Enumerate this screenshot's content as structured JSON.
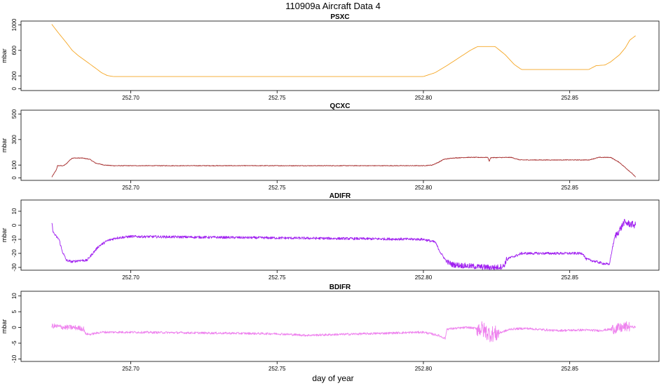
{
  "figure": {
    "title": "110909a   Aircraft Data 4",
    "xlabel": "day of year"
  },
  "chart_data": [
    {
      "type": "line",
      "title": "PSXC",
      "ylabel": "mbar",
      "xlim": [
        252.6625,
        252.8805
      ],
      "ylim": [
        -30,
        1060
      ],
      "xticks": [
        252.7,
        252.75,
        252.8,
        252.85
      ],
      "xtick_labels": [
        "252.70",
        "252.75",
        "252.80",
        "252.85"
      ],
      "yticks": [
        0,
        200,
        600,
        1000
      ],
      "ytick_labels": [
        "0",
        "200",
        "600",
        "1000"
      ],
      "series": [
        {
          "color": "#f5a623",
          "x": [
            252.673,
            252.675,
            252.678,
            252.68,
            252.682,
            252.685,
            252.688,
            252.69,
            252.692,
            252.694,
            252.7,
            252.75,
            252.8,
            252.804,
            252.808,
            252.812,
            252.816,
            252.8185,
            252.8245,
            252.828,
            252.831,
            252.8335,
            252.85,
            252.8565,
            252.859,
            252.862,
            252.864,
            252.867,
            252.869,
            252.8705,
            252.8725
          ],
          "y": [
            1010,
            890,
            720,
            600,
            520,
            420,
            320,
            250,
            205,
            190,
            190,
            190,
            190,
            250,
            360,
            480,
            600,
            660,
            660,
            530,
            380,
            300,
            300,
            300,
            360,
            370,
            420,
            530,
            640,
            760,
            830
          ]
        }
      ]
    },
    {
      "type": "line",
      "title": "QCXC",
      "ylabel": "mbar",
      "xlim": [
        252.6625,
        252.8805
      ],
      "ylim": [
        -20,
        530
      ],
      "xticks": [
        252.7,
        252.75,
        252.8,
        252.85
      ],
      "xtick_labels": [
        "252.70",
        "252.75",
        "252.80",
        "252.85"
      ],
      "yticks": [
        0,
        100,
        300,
        500
      ],
      "ytick_labels": [
        "0",
        "100",
        "300",
        "500"
      ],
      "series": [
        {
          "color": "#a52a2a",
          "x": [
            252.673,
            252.6745,
            252.675,
            252.677,
            252.678,
            252.679,
            252.68,
            252.6835,
            252.686,
            252.688,
            252.691,
            252.694,
            252.7,
            252.75,
            252.8,
            252.803,
            252.805,
            252.807,
            252.81,
            252.815,
            252.822,
            252.8225,
            252.823,
            252.83,
            252.833,
            252.845,
            252.8565,
            252.86,
            252.864,
            252.867,
            252.869,
            252.8715,
            252.8725
          ],
          "y": [
            5,
            60,
            95,
            95,
            110,
            135,
            155,
            155,
            145,
            115,
            100,
            95,
            95,
            95,
            95,
            100,
            120,
            145,
            155,
            160,
            160,
            130,
            158,
            160,
            140,
            140,
            140,
            160,
            160,
            120,
            80,
            30,
            5
          ]
        }
      ]
    },
    {
      "type": "line",
      "title": "ADIFR",
      "ylabel": "mbar",
      "xlim": [
        252.6625,
        252.8805
      ],
      "ylim": [
        -32,
        18
      ],
      "xticks": [
        252.7,
        252.75,
        252.8,
        252.85
      ],
      "xtick_labels": [
        "252.70",
        "252.75",
        "252.80",
        "252.85"
      ],
      "yticks": [
        -30,
        -20,
        -10,
        0,
        10
      ],
      "ytick_labels": [
        "-30",
        "-20",
        "-10",
        "0",
        "10"
      ],
      "series": [
        {
          "color": "#a020f0",
          "x": [
            252.673,
            252.6735,
            252.6745,
            252.6755,
            252.6765,
            252.678,
            252.68,
            252.6825,
            252.685,
            252.687,
            252.689,
            252.692,
            252.695,
            252.7,
            252.75,
            252.8,
            252.804,
            252.806,
            252.808,
            252.81,
            252.815,
            252.8225,
            252.825,
            252.8275,
            252.8285,
            252.8325,
            252.8335,
            252.845,
            252.8545,
            252.8555,
            252.861,
            252.8635,
            252.865,
            252.8655,
            252.8675,
            252.8685,
            252.8725
          ],
          "y": [
            2,
            -5,
            -8,
            -10,
            -18,
            -25,
            -26,
            -25,
            -25,
            -20,
            -15,
            -11,
            -9,
            -8,
            -9,
            -10,
            -12,
            -20,
            -26,
            -28,
            -29,
            -30,
            -30,
            -29,
            -24,
            -21,
            -20,
            -20,
            -20,
            -24,
            -27,
            -28,
            -12,
            -8,
            -2,
            2,
            0
          ]
        }
      ]
    },
    {
      "type": "line",
      "title": "BDIFR",
      "ylabel": "mbar",
      "xlim": [
        252.6625,
        252.8805
      ],
      "ylim": [
        -10.8,
        11.5
      ],
      "xticks": [
        252.7,
        252.75,
        252.8,
        252.85
      ],
      "xtick_labels": [
        "252.70",
        "252.75",
        "252.80",
        "252.85"
      ],
      "yticks": [
        -10,
        -5,
        0,
        5,
        10
      ],
      "ytick_labels": [
        "-10",
        "-5",
        "0",
        "5",
        "10"
      ],
      "series": [
        {
          "color": "#ee82ee",
          "x": [
            252.673,
            252.675,
            252.6775,
            252.68,
            252.6825,
            252.684,
            252.6845,
            252.686,
            252.69,
            252.7,
            252.75,
            252.76,
            252.8,
            252.805,
            252.8075,
            252.808,
            252.815,
            252.82,
            252.8225,
            252.825,
            252.83,
            252.835,
            252.845,
            252.855,
            252.86,
            252.8675,
            252.8695,
            252.8725
          ],
          "y": [
            0.5,
            0.3,
            0,
            0,
            -0.2,
            -0.5,
            -2,
            -2.2,
            -1.5,
            -1.5,
            -2,
            -2.5,
            -1.5,
            -2.5,
            -3.5,
            -0.5,
            0,
            -0.5,
            -2,
            -2,
            -0.5,
            -0.3,
            -1,
            -0.8,
            -1,
            -0.2,
            0.3,
            0.1
          ]
        }
      ]
    }
  ]
}
